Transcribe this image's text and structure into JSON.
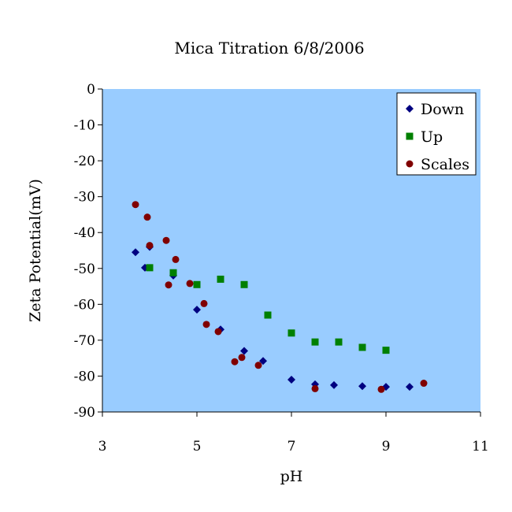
{
  "chart_data": {
    "type": "scatter",
    "title": "Mica Titration 6/8/2006",
    "xlabel": "pH",
    "ylabel": "Zeta Potential(mV)",
    "xlim": [
      3,
      11
    ],
    "ylim": [
      -90,
      0
    ],
    "x_ticks": [
      3,
      5,
      7,
      9,
      11
    ],
    "y_ticks": [
      0,
      -10,
      -20,
      -30,
      -40,
      -50,
      -60,
      -70,
      -80,
      -90
    ],
    "grid": false,
    "plot_background": "#99ccff",
    "legend_position": "top-right",
    "series": [
      {
        "name": "Down",
        "marker": "diamond",
        "color": "#000080",
        "points": [
          [
            3.7,
            -45.5
          ],
          [
            3.9,
            -49.8
          ],
          [
            4.0,
            -44.0
          ],
          [
            4.5,
            -52.0
          ],
          [
            5.0,
            -61.5
          ],
          [
            5.5,
            -67.0
          ],
          [
            6.0,
            -73.0
          ],
          [
            6.4,
            -75.8
          ],
          [
            7.0,
            -81.0
          ],
          [
            7.5,
            -82.3
          ],
          [
            7.9,
            -82.5
          ],
          [
            8.5,
            -82.8
          ],
          [
            9.0,
            -83.0
          ],
          [
            9.5,
            -83.0
          ]
        ]
      },
      {
        "name": "Up",
        "marker": "square",
        "color": "#008000",
        "points": [
          [
            4.0,
            -49.8
          ],
          [
            4.5,
            -51.2
          ],
          [
            5.0,
            -54.5
          ],
          [
            5.5,
            -53.0
          ],
          [
            6.0,
            -54.5
          ],
          [
            6.5,
            -63.0
          ],
          [
            7.0,
            -68.0
          ],
          [
            7.5,
            -70.5
          ],
          [
            8.0,
            -70.5
          ],
          [
            8.5,
            -72.0
          ],
          [
            9.0,
            -72.8
          ]
        ]
      },
      {
        "name": "Scales",
        "marker": "circle",
        "color": "#800000",
        "points": [
          [
            3.7,
            -32.2
          ],
          [
            3.95,
            -35.7
          ],
          [
            4.0,
            -43.6
          ],
          [
            4.35,
            -42.2
          ],
          [
            4.4,
            -54.6
          ],
          [
            4.55,
            -47.5
          ],
          [
            4.85,
            -54.2
          ],
          [
            5.15,
            -59.8
          ],
          [
            5.2,
            -65.6
          ],
          [
            5.45,
            -67.6
          ],
          [
            5.8,
            -76.0
          ],
          [
            5.95,
            -74.8
          ],
          [
            6.3,
            -77.0
          ],
          [
            7.5,
            -83.5
          ],
          [
            8.9,
            -83.7
          ],
          [
            9.8,
            -82.0
          ]
        ]
      }
    ]
  }
}
